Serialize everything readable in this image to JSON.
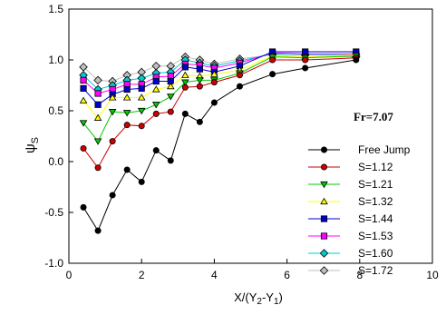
{
  "chart_data": {
    "type": "line",
    "title": "",
    "xlabel": "X/(Y2-Y1)",
    "ylabel": "ψS",
    "xlim": [
      0,
      10
    ],
    "ylim": [
      -1.0,
      1.5
    ],
    "xticks": [
      "0",
      "2",
      "4",
      "6",
      "8",
      "10"
    ],
    "yticks": [
      "-1.0",
      "-0.5",
      "0.0",
      "0.5",
      "1.0",
      "1.5"
    ],
    "annotation": "Fr=7.07",
    "legend_position": "right",
    "grid": false,
    "series": [
      {
        "name": "Free Jump",
        "color": "#000000",
        "marker": "circle",
        "x": [
          0.4,
          0.8,
          1.2,
          1.6,
          2.0,
          2.4,
          2.8,
          3.2,
          3.6,
          4.0,
          4.7,
          5.6,
          6.5,
          7.9
        ],
        "y": [
          -0.45,
          -0.68,
          -0.33,
          -0.08,
          -0.2,
          0.11,
          0.01,
          0.47,
          0.39,
          0.58,
          0.74,
          0.86,
          0.92,
          1.0
        ]
      },
      {
        "name": "S=1.12",
        "color": "#cc0000",
        "marker": "circle",
        "x": [
          0.4,
          0.8,
          1.2,
          1.6,
          2.0,
          2.4,
          2.8,
          3.2,
          3.6,
          4.0,
          4.7,
          5.6,
          6.5,
          7.9
        ],
        "y": [
          0.13,
          -0.06,
          0.2,
          0.36,
          0.35,
          0.47,
          0.49,
          0.73,
          0.74,
          0.78,
          0.85,
          1.0,
          1.0,
          1.02
        ]
      },
      {
        "name": "S=1.21",
        "color": "#00cc00",
        "marker": "triangle-down",
        "x": [
          0.4,
          0.8,
          1.2,
          1.6,
          2.0,
          2.4,
          2.8,
          3.2,
          3.6,
          4.0,
          4.7,
          5.6,
          6.5,
          7.9
        ],
        "y": [
          0.38,
          0.2,
          0.49,
          0.48,
          0.5,
          0.56,
          0.64,
          0.78,
          0.8,
          0.8,
          0.87,
          1.03,
          1.02,
          1.04
        ]
      },
      {
        "name": "S=1.32",
        "color": "#ffff00",
        "marker": "triangle-up",
        "x": [
          0.4,
          0.8,
          1.2,
          1.6,
          2.0,
          2.4,
          2.8,
          3.2,
          3.6,
          4.0,
          4.7,
          5.6,
          6.5,
          7.9
        ],
        "y": [
          0.6,
          0.43,
          0.63,
          0.63,
          0.63,
          0.71,
          0.74,
          0.85,
          0.84,
          0.86,
          0.9,
          1.04,
          1.03,
          1.05
        ]
      },
      {
        "name": "S=1.44",
        "color": "#0000cc",
        "marker": "square",
        "x": [
          0.4,
          0.8,
          1.2,
          1.6,
          2.0,
          2.4,
          2.8,
          3.2,
          3.6,
          4.0,
          4.7,
          5.6,
          6.5,
          7.9
        ],
        "y": [
          0.72,
          0.56,
          0.66,
          0.71,
          0.72,
          0.79,
          0.79,
          0.93,
          0.91,
          0.88,
          0.94,
          1.08,
          1.08,
          1.08
        ]
      },
      {
        "name": "S=1.53",
        "color": "#ff00ff",
        "marker": "square",
        "x": [
          0.4,
          0.8,
          1.2,
          1.6,
          2.0,
          2.4,
          2.8,
          3.2,
          3.6,
          4.0,
          4.7,
          5.6,
          6.5,
          7.9
        ],
        "y": [
          0.8,
          0.67,
          0.71,
          0.76,
          0.76,
          0.83,
          0.84,
          0.96,
          0.95,
          0.92,
          0.97,
          1.07,
          1.06,
          1.06
        ]
      },
      {
        "name": "S=1.60",
        "color": "#00cccc",
        "marker": "diamond",
        "x": [
          0.4,
          0.8,
          1.2,
          1.6,
          2.0,
          2.4,
          2.8,
          3.2,
          3.6,
          4.0,
          4.7,
          5.6,
          6.5,
          7.9
        ],
        "y": [
          0.85,
          0.71,
          0.75,
          0.8,
          0.82,
          0.87,
          0.88,
          1.0,
          0.97,
          0.94,
          0.99,
          1.06,
          1.05,
          1.05
        ]
      },
      {
        "name": "S=1.72",
        "color": "#c0c0c0",
        "marker": "diamond",
        "x": [
          0.4,
          0.8,
          1.2,
          1.6,
          2.0,
          2.4,
          2.8,
          3.2,
          3.6,
          4.0,
          4.7,
          5.6,
          6.5,
          7.9
        ],
        "y": [
          0.93,
          0.8,
          0.79,
          0.85,
          0.88,
          0.94,
          0.94,
          1.03,
          1.0,
          0.96,
          1.01,
          1.05,
          1.03,
          1.03
        ]
      }
    ]
  }
}
